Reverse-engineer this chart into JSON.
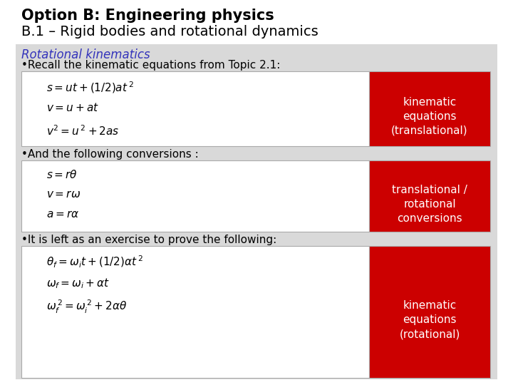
{
  "title_line1": "Option B: Engineering physics",
  "title_line2": "B.1 – Rigid bodies and rotational dynamics",
  "subtitle": "Rotational kinematics",
  "bullet1": "•Recall the kinematic equations from Topic 2.1:",
  "bullet2": "•And the following conversions :",
  "bullet3": "•It is left as an exercise to prove the following:",
  "box1_label": [
    "kinematic",
    "equations",
    "(translational)"
  ],
  "box2_label": [
    "translational /",
    "rotational",
    "conversions"
  ],
  "box3_label": [
    "kinematic",
    "equations",
    "(rotational)"
  ],
  "bg_color": "#d9d9d9",
  "white_color": "#ffffff",
  "red_color": "#cc0000",
  "title1_color": "#000000",
  "title2_color": "#000000",
  "subtitle_color": "#3333bb",
  "bullet_color": "#000000",
  "box_text_color": "#000000",
  "red_text_color": "#ffffff",
  "title1_fontsize": 15,
  "title2_fontsize": 14,
  "subtitle_fontsize": 12,
  "bullet_fontsize": 11,
  "eq_fontsize": 11,
  "label_fontsize": 11
}
